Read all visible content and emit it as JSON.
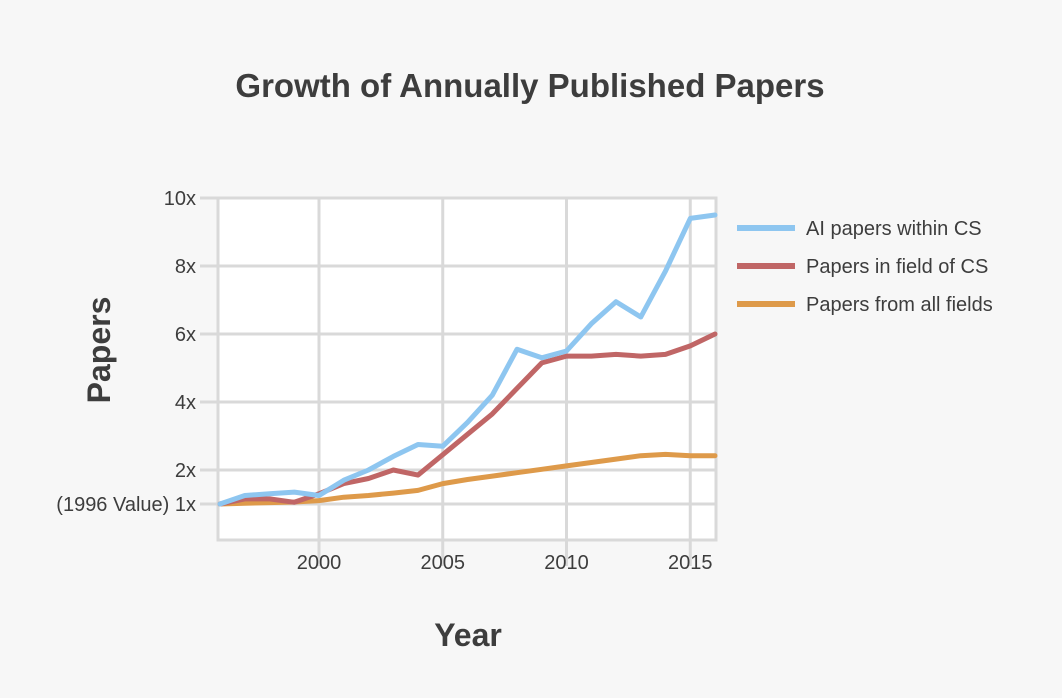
{
  "chart_data": {
    "type": "line",
    "title": "Growth of Annually Published Papers",
    "xlabel": "Year",
    "ylabel": "Papers",
    "xlim": [
      1996,
      2016
    ],
    "ylim": [
      0,
      10
    ],
    "x_ticks": [
      2000,
      2005,
      2010,
      2015
    ],
    "y_ticks": [
      {
        "value": 1,
        "label": "(1996 Value) 1x"
      },
      {
        "value": 2,
        "label": "2x"
      },
      {
        "value": 4,
        "label": "4x"
      },
      {
        "value": 6,
        "label": "6x"
      },
      {
        "value": 8,
        "label": "8x"
      },
      {
        "value": 10,
        "label": "10x"
      }
    ],
    "grid": true,
    "legend_position": "right",
    "x": [
      1996,
      1997,
      1998,
      1999,
      2000,
      2001,
      2002,
      2003,
      2004,
      2005,
      2006,
      2007,
      2008,
      2009,
      2010,
      2011,
      2012,
      2013,
      2014,
      2015,
      2016
    ],
    "series": [
      {
        "name": "AI papers within CS",
        "color": "#8ec6f0",
        "values": [
          1.0,
          1.25,
          1.3,
          1.35,
          1.25,
          1.7,
          2.0,
          2.4,
          2.75,
          2.7,
          3.4,
          4.2,
          5.55,
          5.3,
          5.5,
          6.3,
          6.95,
          6.5,
          7.85,
          9.4,
          9.5
        ]
      },
      {
        "name": "Papers in field of CS",
        "color": "#c06666",
        "values": [
          1.0,
          1.15,
          1.15,
          1.05,
          1.3,
          1.6,
          1.75,
          2.0,
          1.85,
          2.45,
          3.05,
          3.65,
          4.4,
          5.15,
          5.35,
          5.35,
          5.4,
          5.35,
          5.4,
          5.65,
          6.0
        ]
      },
      {
        "name": "Papers from all fields",
        "color": "#de9a4a",
        "values": [
          1.0,
          1.02,
          1.04,
          1.06,
          1.1,
          1.2,
          1.25,
          1.32,
          1.4,
          1.6,
          1.72,
          1.82,
          1.92,
          2.02,
          2.12,
          2.22,
          2.32,
          2.42,
          2.46,
          2.42,
          2.42
        ]
      }
    ]
  }
}
